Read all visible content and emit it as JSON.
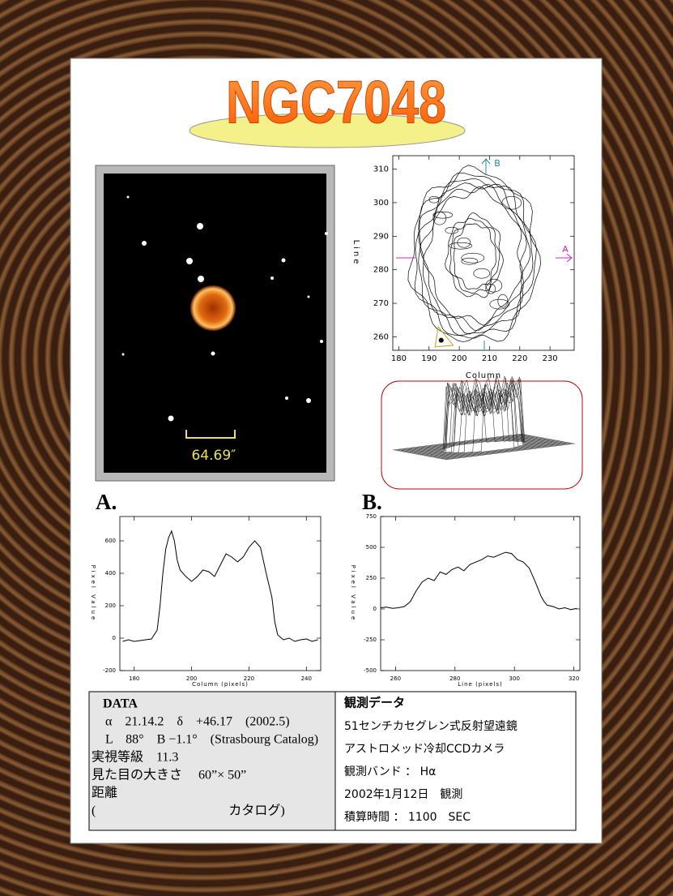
{
  "title": "NGC7048",
  "image": {
    "scale_label": "64.69″"
  },
  "panel_labels": [
    "A.",
    "B."
  ],
  "chart_data": [
    {
      "type": "contour",
      "x_label": "Column",
      "y_label": "Line",
      "xlim": [
        178,
        238
      ],
      "ylim": [
        256,
        314
      ],
      "xticks": [
        180,
        190,
        200,
        210,
        220,
        230
      ],
      "yticks": [
        260,
        270,
        280,
        290,
        300,
        310
      ],
      "annotations": [
        "A",
        "B"
      ]
    },
    {
      "type": "line",
      "x_label": "Column (pixels)",
      "y_label": "Pixel Value",
      "xlim": [
        175,
        245
      ],
      "ylim": [
        -200,
        750
      ],
      "xticks": [
        180,
        200,
        220,
        240
      ],
      "yticks": [
        -200,
        0,
        200,
        400,
        600
      ],
      "color": "#000000",
      "x": [
        176,
        178,
        180,
        182,
        184,
        186,
        188,
        189,
        190,
        191,
        192,
        193,
        194,
        195,
        196,
        198,
        200,
        202,
        204,
        206,
        208,
        210,
        212,
        214,
        216,
        218,
        220,
        222,
        224,
        226,
        228,
        229,
        230,
        232,
        234,
        236,
        238,
        240,
        242,
        244
      ],
      "values": [
        -20,
        -10,
        -20,
        -15,
        -10,
        -5,
        50,
        200,
        400,
        550,
        620,
        660,
        600,
        480,
        420,
        380,
        350,
        380,
        420,
        410,
        380,
        450,
        520,
        500,
        470,
        500,
        560,
        600,
        560,
        400,
        250,
        100,
        20,
        -10,
        0,
        -20,
        -10,
        -5,
        -20,
        -10
      ]
    },
    {
      "type": "line",
      "x_label": "Line (pixels)",
      "y_label": "Pixel Value",
      "xlim": [
        255,
        322
      ],
      "ylim": [
        -500,
        750
      ],
      "xticks": [
        260,
        280,
        300,
        320
      ],
      "yticks": [
        -500,
        -250,
        0,
        250,
        500,
        750
      ],
      "color": "#000000",
      "x": [
        255,
        257,
        259,
        261,
        263,
        265,
        267,
        269,
        271,
        273,
        275,
        277,
        279,
        281,
        283,
        285,
        287,
        289,
        291,
        293,
        295,
        297,
        299,
        301,
        303,
        305,
        307,
        309,
        310,
        311,
        313,
        315,
        317,
        319,
        321
      ],
      "values": [
        10,
        15,
        5,
        10,
        20,
        60,
        150,
        220,
        250,
        230,
        300,
        280,
        320,
        340,
        310,
        360,
        380,
        400,
        430,
        420,
        440,
        460,
        450,
        400,
        380,
        330,
        220,
        100,
        60,
        30,
        20,
        0,
        10,
        -5,
        5
      ]
    }
  ],
  "data_table": {
    "left_title": "DATA",
    "left_rows": [
      "α　21.14.2　δ　+46.17　(2002.5)",
      "L　88°　B −1.1°　(Strasbourg Catalog)",
      "実視等級　11.3",
      "見た目の大きさ　 60”× 50”",
      "距離",
      "(　　　　　　　　　　 カタログ)"
    ],
    "right_title": "観測データ",
    "right_rows": [
      "51センチカセグレン式反射望遠鏡",
      "アストロメッド冷却CCDカメラ",
      "観測バンド ： Hα",
      "2002年1月12日　観測",
      "積算時間 ： 1100　SEC"
    ]
  }
}
